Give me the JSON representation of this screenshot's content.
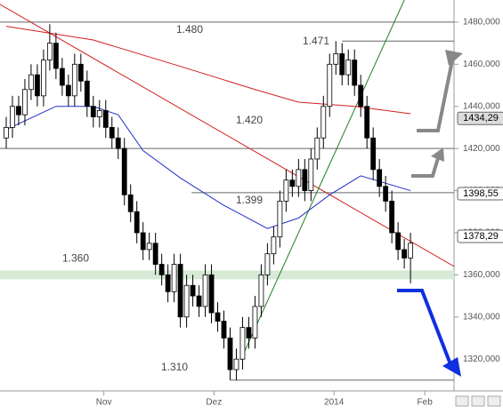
{
  "chart_data": {
    "type": "candlestick",
    "x": [
      1,
      2,
      3,
      4,
      5,
      6,
      7,
      8,
      9,
      10,
      11,
      12,
      13,
      14,
      15,
      16,
      17,
      18,
      19,
      20,
      21,
      22,
      23,
      24,
      25,
      26,
      27,
      28,
      29,
      30,
      31,
      32,
      33,
      34,
      35,
      36,
      37,
      38,
      39,
      40,
      41,
      42,
      43,
      44,
      45,
      46,
      47,
      48,
      49,
      50,
      51,
      52,
      53,
      54,
      55,
      56,
      57,
      58,
      59,
      60,
      61,
      62,
      63,
      64,
      65,
      66
    ],
    "open": [
      1425,
      1430,
      1440,
      1436,
      1448,
      1455,
      1445,
      1462,
      1470,
      1458,
      1450,
      1445,
      1460,
      1452,
      1440,
      1435,
      1438,
      1430,
      1425,
      1420,
      1398,
      1390,
      1380,
      1372,
      1375,
      1365,
      1360,
      1352,
      1365,
      1340,
      1355,
      1350,
      1345,
      1360,
      1342,
      1338,
      1330,
      1315,
      1320,
      1335,
      1330,
      1345,
      1360,
      1370,
      1378,
      1395,
      1405,
      1402,
      1410,
      1400,
      1415,
      1425,
      1440,
      1460,
      1465,
      1455,
      1462,
      1450,
      1440,
      1425,
      1410,
      1402,
      1395,
      1380,
      1372,
      1368
    ],
    "high": [
      1435,
      1445,
      1445,
      1453,
      1460,
      1460,
      1467,
      1479,
      1475,
      1463,
      1455,
      1465,
      1465,
      1457,
      1445,
      1443,
      1443,
      1435,
      1430,
      1425,
      1403,
      1395,
      1385,
      1380,
      1380,
      1370,
      1365,
      1370,
      1370,
      1360,
      1360,
      1355,
      1365,
      1365,
      1347,
      1343,
      1335,
      1325,
      1340,
      1340,
      1350,
      1365,
      1375,
      1383,
      1400,
      1410,
      1410,
      1415,
      1415,
      1420,
      1430,
      1445,
      1465,
      1471,
      1470,
      1467,
      1467,
      1455,
      1445,
      1430,
      1415,
      1407,
      1400,
      1385,
      1377,
      1380
    ],
    "low": [
      1420,
      1425,
      1431,
      1431,
      1443,
      1440,
      1440,
      1457,
      1453,
      1445,
      1440,
      1440,
      1447,
      1435,
      1430,
      1430,
      1425,
      1420,
      1415,
      1393,
      1385,
      1375,
      1367,
      1367,
      1360,
      1355,
      1347,
      1347,
      1335,
      1335,
      1345,
      1340,
      1340,
      1337,
      1333,
      1325,
      1310,
      1310,
      1315,
      1325,
      1325,
      1340,
      1355,
      1365,
      1373,
      1390,
      1397,
      1397,
      1395,
      1395,
      1410,
      1420,
      1435,
      1455,
      1450,
      1450,
      1445,
      1435,
      1420,
      1405,
      1397,
      1390,
      1375,
      1367,
      1363,
      1356
    ],
    "close": [
      1430,
      1440,
      1436,
      1448,
      1455,
      1445,
      1462,
      1470,
      1458,
      1450,
      1445,
      1460,
      1452,
      1440,
      1435,
      1438,
      1430,
      1425,
      1420,
      1398,
      1390,
      1380,
      1372,
      1375,
      1365,
      1360,
      1352,
      1365,
      1340,
      1355,
      1350,
      1345,
      1360,
      1342,
      1338,
      1330,
      1315,
      1320,
      1335,
      1330,
      1345,
      1360,
      1370,
      1378,
      1395,
      1405,
      1402,
      1410,
      1400,
      1415,
      1425,
      1440,
      1460,
      1465,
      1455,
      1462,
      1450,
      1440,
      1425,
      1410,
      1402,
      1395,
      1380,
      1372,
      1368,
      1375
    ],
    "moving_averages": [
      {
        "color": "#d42020",
        "x": [
          1,
          15,
          29,
          41,
          48,
          57,
          66
        ],
        "values": [
          1478,
          1471.5,
          1459,
          1448,
          1442,
          1440,
          1436.5
        ]
      },
      {
        "color": "#2030c8",
        "x": [
          1,
          9,
          15,
          19,
          23,
          29,
          36,
          43,
          48,
          53,
          58,
          66
        ],
        "values": [
          1429,
          1440,
          1440,
          1436,
          1419,
          1406,
          1393,
          1382,
          1387,
          1398,
          1407,
          1400
        ]
      }
    ],
    "trendlines": [
      {
        "color": "#d42020",
        "x": [
          0,
          73
        ],
        "values": [
          1488.4,
          1364
        ]
      },
      {
        "color": "#208020",
        "x": [
          38.7,
          65
        ],
        "values": [
          1319.6,
          1490.5
        ]
      }
    ],
    "levels": [
      {
        "value": 1480,
        "label": "1.480",
        "start": 0
      },
      {
        "value": 1471,
        "label": "1.471",
        "start": 55
      },
      {
        "value": 1420,
        "label": "1.420",
        "start": 0
      },
      {
        "value": 1399,
        "label": "1.399",
        "start": 30.8
      },
      {
        "value": 1310,
        "label": "1.310",
        "start": 37
      }
    ],
    "zone": {
      "value": 1360,
      "label": "1.360",
      "color": "#d6ead6"
    },
    "price_labels": [
      {
        "value": 1434.29,
        "label": "1434,29"
      },
      {
        "value": 1398.55,
        "label": "1398,55"
      },
      {
        "value": 1378.29,
        "label": "1378,29"
      }
    ],
    "xlim": [
      0,
      73
    ],
    "xticks": [
      {
        "value": 16.7,
        "label": "Nov"
      },
      {
        "value": 34.4,
        "label": "Dez"
      },
      {
        "value": 53.7,
        "label": "2014"
      },
      {
        "value": 68.3,
        "label": "Feb"
      }
    ],
    "ylim": [
      1304.9,
      1490.5
    ],
    "yticks": [
      {
        "value": 1320,
        "label": "1320,000"
      },
      {
        "value": 1340,
        "label": "1340,000"
      },
      {
        "value": 1360,
        "label": "1360,000"
      },
      {
        "value": 1380,
        "label": "1380,000"
      },
      {
        "value": 1400,
        "label": "1400,000"
      },
      {
        "value": 1420,
        "label": "1420,000"
      },
      {
        "value": 1440,
        "label": "1440,000"
      },
      {
        "value": 1460,
        "label": "1460,000"
      },
      {
        "value": 1480,
        "label": "1480,000"
      }
    ]
  }
}
